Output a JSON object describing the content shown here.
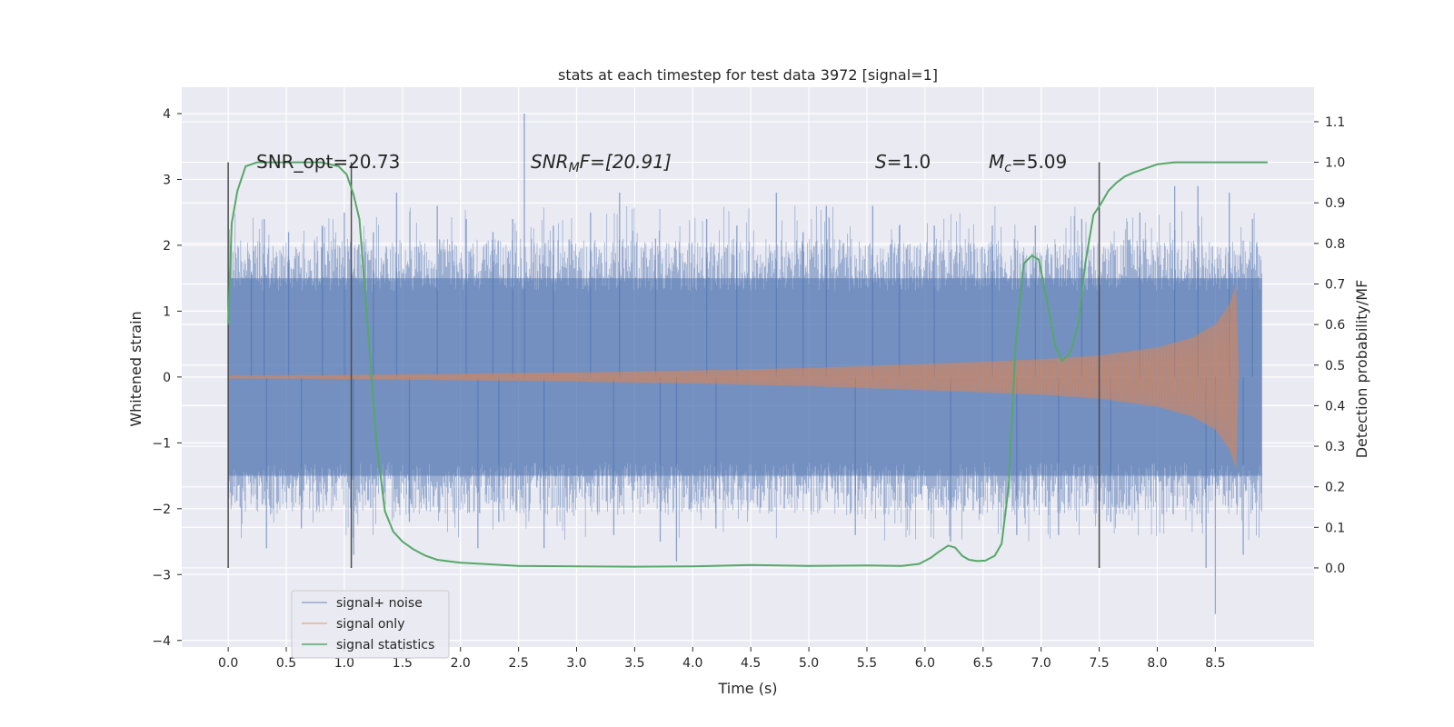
{
  "chart_data": {
    "type": "line",
    "title": "stats at each timestep for test data 3972 [signal=1]",
    "xlabel": "Time (s)",
    "ylabel_left": "Whitened strain",
    "ylabel_right": "Detection probability/MF",
    "xlim": [
      -0.4,
      9.35
    ],
    "ylim_left": [
      -4.1,
      4.4
    ],
    "ylim_right": [
      -0.195,
      1.185
    ],
    "grid": true,
    "x_ticks": [
      "0.0",
      "0.5",
      "1.0",
      "1.5",
      "2.0",
      "2.5",
      "3.0",
      "3.5",
      "4.0",
      "4.5",
      "5.0",
      "5.5",
      "6.0",
      "6.5",
      "7.0",
      "7.5",
      "8.0",
      "8.5"
    ],
    "y_ticks_left": [
      "4",
      "3",
      "2",
      "1",
      "0",
      "−1",
      "−2",
      "−3",
      "−4"
    ],
    "y_ticks_right": [
      "0.0",
      "0.1",
      "0.2",
      "0.3",
      "0.4",
      "0.5",
      "0.6",
      "0.7",
      "0.8",
      "0.9",
      "1.0",
      "1.1"
    ],
    "annotations": {
      "snr_opt": "SNR_opt=20.73",
      "snr_mf_sym": "SNR",
      "snr_mf_sub": "M",
      "snr_mf_rest": "F=[20.91]",
      "s_sym": "S",
      "s_rest": "=1.0",
      "mc_sym": "M",
      "mc_sub": "c",
      "mc_rest": "=5.09"
    },
    "vertical_markers_x": [
      0.0,
      1.06,
      7.5
    ],
    "legend": {
      "position": "lower-left",
      "entries": [
        "signal+ noise",
        "signal only",
        "signal statistics"
      ]
    },
    "series": [
      {
        "name": "signal+ noise",
        "axis": "left",
        "color": "#4c72b0",
        "description": "whitened noisy strain, band roughly +/-1.5 with spikes",
        "band": [
          -1.5,
          1.5
        ],
        "x_range": [
          0.0,
          8.9
        ],
        "spikes": [
          [
            0.2,
            1.6
          ],
          [
            0.31,
            2.4
          ],
          [
            0.33,
            -2.6
          ],
          [
            0.52,
            2.2
          ],
          [
            0.63,
            -2.3
          ],
          [
            0.81,
            2.3
          ],
          [
            1.0,
            2.5
          ],
          [
            1.08,
            -2.7
          ],
          [
            1.25,
            2.2
          ],
          [
            1.45,
            2.8
          ],
          [
            1.56,
            -2.2
          ],
          [
            1.8,
            2.6
          ],
          [
            2.05,
            2.4
          ],
          [
            2.15,
            -2.6
          ],
          [
            2.28,
            2.2
          ],
          [
            2.45,
            2.4
          ],
          [
            2.55,
            4.0
          ],
          [
            2.33,
            -2.2
          ],
          [
            2.72,
            -2.6
          ],
          [
            2.8,
            2.3
          ],
          [
            3.12,
            2.5
          ],
          [
            3.32,
            -2.4
          ],
          [
            3.37,
            2.8
          ],
          [
            3.68,
            2.1
          ],
          [
            3.72,
            -2.5
          ],
          [
            3.86,
            -2.8
          ],
          [
            4.12,
            2.4
          ],
          [
            4.2,
            -2.3
          ],
          [
            4.38,
            2.3
          ],
          [
            4.72,
            2.8
          ],
          [
            4.95,
            2.2
          ],
          [
            5.15,
            2.6
          ],
          [
            5.4,
            -2.4
          ],
          [
            5.55,
            2.6
          ],
          [
            5.78,
            2.3
          ],
          [
            6.08,
            2.3
          ],
          [
            6.22,
            -2.5
          ],
          [
            6.58,
            2.3
          ],
          [
            6.79,
            -2.4
          ],
          [
            6.95,
            2.3
          ],
          [
            7.15,
            -2.4
          ],
          [
            7.35,
            2.4
          ],
          [
            7.6,
            -2.2
          ],
          [
            7.85,
            2.5
          ],
          [
            8.15,
            2.9
          ],
          [
            8.35,
            2.9
          ],
          [
            8.42,
            -2.9
          ],
          [
            8.5,
            -3.6
          ],
          [
            8.62,
            2.8
          ],
          [
            8.74,
            -2.7
          ],
          [
            8.82,
            2.4
          ]
        ]
      },
      {
        "name": "signal only",
        "axis": "left",
        "color": "#dd8452",
        "description": "chirp envelope growing from 0 to ~1.3 at merger near 8.7 s",
        "envelope": [
          [
            0.0,
            0.02
          ],
          [
            1.0,
            0.03
          ],
          [
            2.0,
            0.05
          ],
          [
            3.0,
            0.07
          ],
          [
            4.0,
            0.1
          ],
          [
            5.0,
            0.14
          ],
          [
            6.0,
            0.2
          ],
          [
            7.0,
            0.27
          ],
          [
            7.5,
            0.33
          ],
          [
            8.0,
            0.45
          ],
          [
            8.3,
            0.6
          ],
          [
            8.5,
            0.8
          ],
          [
            8.62,
            1.1
          ],
          [
            8.68,
            1.4
          ],
          [
            8.7,
            0.0
          ]
        ]
      },
      {
        "name": "signal statistics",
        "axis": "right",
        "color": "#55a868",
        "x": [
          0.0,
          0.03,
          0.08,
          0.15,
          0.25,
          0.4,
          0.6,
          0.8,
          0.95,
          1.02,
          1.08,
          1.13,
          1.2,
          1.28,
          1.35,
          1.42,
          1.5,
          1.6,
          1.7,
          1.8,
          2.0,
          2.5,
          3.0,
          3.5,
          4.0,
          4.5,
          5.0,
          5.5,
          5.8,
          5.95,
          6.05,
          6.12,
          6.2,
          6.26,
          6.32,
          6.38,
          6.45,
          6.52,
          6.6,
          6.66,
          6.72,
          6.78,
          6.85,
          6.92,
          6.98,
          7.05,
          7.12,
          7.18,
          7.25,
          7.32,
          7.38,
          7.45,
          7.52,
          7.58,
          7.65,
          7.72,
          7.8,
          7.9,
          8.0,
          8.15,
          8.3,
          8.5,
          8.7,
          8.95
        ],
        "y": [
          0.6,
          0.85,
          0.93,
          0.99,
          1.0,
          1.0,
          1.0,
          1.0,
          0.99,
          0.97,
          0.92,
          0.86,
          0.6,
          0.3,
          0.14,
          0.09,
          0.065,
          0.045,
          0.03,
          0.02,
          0.013,
          0.005,
          0.004,
          0.003,
          0.004,
          0.007,
          0.005,
          0.006,
          0.005,
          0.01,
          0.025,
          0.04,
          0.055,
          0.05,
          0.03,
          0.02,
          0.017,
          0.018,
          0.03,
          0.06,
          0.2,
          0.55,
          0.75,
          0.77,
          0.76,
          0.66,
          0.55,
          0.51,
          0.53,
          0.6,
          0.75,
          0.87,
          0.9,
          0.93,
          0.95,
          0.965,
          0.975,
          0.985,
          0.995,
          1.0,
          1.0,
          1.0,
          1.0,
          1.0
        ]
      }
    ]
  }
}
